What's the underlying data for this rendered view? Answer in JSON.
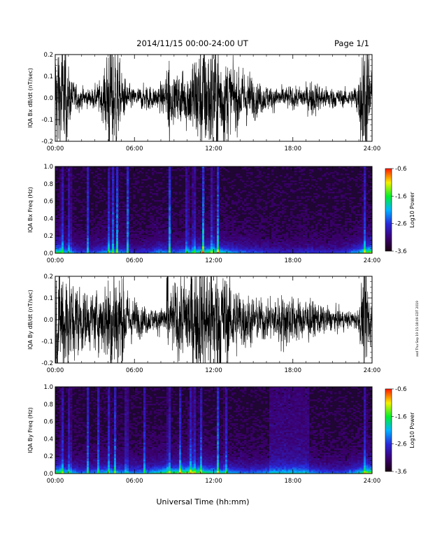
{
  "header": {
    "date_range": "2014/11/15   00:00-24:00 UT",
    "page": "Page 1/1"
  },
  "xlabel": "Universal Time (hh:mm)",
  "side_note": "asd Thu Sep 19 15:18:09 EDT 2019",
  "colors": {
    "spectrogram_scale": [
      "#1a0012",
      "#3b0070",
      "#2a28d8",
      "#00b4ff",
      "#00ee30",
      "#f6f000",
      "#ff1800"
    ]
  },
  "chart_data": [
    {
      "type": "line",
      "ylabel": "IQA Bx dB/dt (nT/sec)",
      "xlim": [
        0,
        24
      ],
      "ylim": [
        -0.2,
        0.2
      ],
      "xticks": [
        "00:00",
        "06:00",
        "12:00",
        "18:00",
        "24:00"
      ],
      "yticks": [
        "-0.2",
        "-0.1",
        "0.0",
        "0.1",
        "0.2"
      ],
      "envelope": {
        "hour": [
          0,
          0.3,
          0.7,
          1,
          1.5,
          2,
          2.5,
          3,
          3.5,
          4,
          4.2,
          4.5,
          4.8,
          5,
          5.5,
          6,
          6.5,
          7,
          7.5,
          8,
          8.5,
          9,
          9.5,
          10,
          10.5,
          11,
          11.5,
          12,
          12.5,
          13,
          13.5,
          14,
          14.5,
          15,
          15.5,
          16,
          16.5,
          17,
          17.5,
          18,
          18.5,
          19,
          19.5,
          20,
          20.5,
          21,
          21.5,
          22,
          22.5,
          23,
          23.2,
          23.5,
          23.8,
          24
        ],
        "amplitude": [
          0.24,
          0.24,
          0.22,
          0.13,
          0.06,
          0.05,
          0.04,
          0.05,
          0.08,
          0.2,
          0.25,
          0.25,
          0.18,
          0.12,
          0.06,
          0.04,
          0.05,
          0.06,
          0.05,
          0.06,
          0.12,
          0.09,
          0.13,
          0.13,
          0.2,
          0.25,
          0.25,
          0.25,
          0.22,
          0.2,
          0.14,
          0.13,
          0.12,
          0.09,
          0.07,
          0.06,
          0.05,
          0.05,
          0.05,
          0.05,
          0.05,
          0.06,
          0.08,
          0.06,
          0.05,
          0.05,
          0.04,
          0.04,
          0.04,
          0.09,
          0.25,
          0.25,
          0.25,
          0.06
        ]
      },
      "bursts_hour": [
        0.2,
        0.5,
        0.8,
        4.05,
        4.35,
        4.6,
        8.6,
        11.2,
        11.9,
        12.3,
        23.3,
        23.6
      ]
    },
    {
      "type": "heatmap",
      "ylabel": "IQA Bx Freq (Hz)",
      "xlim": [
        0,
        24
      ],
      "ylim": [
        0,
        1
      ],
      "xticks": [
        "00:00",
        "06:00",
        "12:00",
        "18:00",
        "24:00"
      ],
      "yticks": [
        "0.0",
        "0.2",
        "0.4",
        "0.6",
        "0.8",
        "1.0"
      ],
      "colorbar": {
        "label": "Log10 Power",
        "range": [
          -3.6,
          -0.6
        ],
        "ticks": [
          "-0.6",
          "-1.6",
          "-2.6",
          "-3.6"
        ]
      },
      "vertical_streaks_hour": [
        0.5,
        1.1,
        2.5,
        4.1,
        4.4,
        4.7,
        5.5,
        8.65,
        10,
        10.5,
        11.2,
        11.9,
        12.3,
        23.4
      ],
      "activity": [
        0.85,
        0.55,
        0.35,
        0.4,
        0.6,
        0.5,
        0.3,
        0.35,
        0.55,
        0.45,
        0.55,
        0.75,
        0.8,
        0.6,
        0.45,
        0.4,
        0.35,
        0.3,
        0.3,
        0.35,
        0.3,
        0.3,
        0.35,
        0.6,
        1.0
      ]
    },
    {
      "type": "line",
      "ylabel": "IQA By dB/dt (nT/sec)",
      "xlim": [
        0,
        24
      ],
      "ylim": [
        -0.2,
        0.2
      ],
      "xticks": [
        "00:00",
        "06:00",
        "12:00",
        "18:00",
        "24:00"
      ],
      "yticks": [
        "-0.2",
        "-0.1",
        "0.0",
        "0.1",
        "0.2"
      ],
      "envelope": {
        "hour": [
          0,
          0.3,
          0.7,
          1,
          1.5,
          2,
          2.5,
          3,
          3.5,
          4,
          4.3,
          4.6,
          5,
          5.5,
          6,
          6.5,
          7,
          7.5,
          8,
          8.5,
          9,
          9.5,
          10,
          10.5,
          11,
          11.5,
          12,
          12.5,
          13,
          13.5,
          14,
          14.5,
          15,
          15.5,
          16,
          16.5,
          17,
          17.5,
          18,
          18.5,
          19,
          19.5,
          20,
          20.5,
          21,
          21.5,
          22,
          22.5,
          23,
          23.3,
          23.6,
          24
        ],
        "amplitude": [
          0.25,
          0.25,
          0.25,
          0.22,
          0.17,
          0.15,
          0.12,
          0.13,
          0.14,
          0.2,
          0.25,
          0.25,
          0.22,
          0.12,
          0.09,
          0.07,
          0.06,
          0.05,
          0.06,
          0.09,
          0.16,
          0.18,
          0.22,
          0.25,
          0.25,
          0.25,
          0.25,
          0.24,
          0.2,
          0.17,
          0.14,
          0.12,
          0.1,
          0.09,
          0.09,
          0.1,
          0.12,
          0.12,
          0.11,
          0.09,
          0.1,
          0.08,
          0.07,
          0.06,
          0.05,
          0.05,
          0.04,
          0.04,
          0.05,
          0.2,
          0.25,
          0.06
        ]
      },
      "bursts_hour": [
        0.3,
        0.6,
        4.2,
        4.5,
        8.5,
        10.3,
        11.0,
        11.8,
        12.5,
        23.4
      ]
    },
    {
      "type": "heatmap",
      "ylabel": "IQA By Freq (Hz)",
      "xlim": [
        0,
        24
      ],
      "ylim": [
        0,
        1
      ],
      "xticks": [
        "00:00",
        "06:00",
        "12:00",
        "18:00",
        "24:00"
      ],
      "yticks": [
        "0.0",
        "0.2",
        "0.4",
        "0.6",
        "0.8",
        "1.0"
      ],
      "colorbar": {
        "label": "Log10 Power",
        "range": [
          -3.6,
          -0.6
        ],
        "ticks": [
          "-0.6",
          "-1.6",
          "-2.6",
          "-3.6"
        ]
      },
      "vertical_streaks_hour": [
        0.5,
        1.1,
        2.5,
        3.3,
        4.1,
        4.5,
        5.4,
        6.8,
        8.6,
        9.5,
        10.2,
        10.5,
        11.0,
        12.3,
        12.9,
        23.5
      ],
      "activity": [
        0.85,
        0.6,
        0.45,
        0.5,
        0.65,
        0.55,
        0.5,
        0.55,
        0.75,
        0.8,
        0.9,
        0.85,
        0.7,
        0.6,
        0.5,
        0.45,
        0.55,
        0.55,
        0.55,
        0.55,
        0.45,
        0.4,
        0.4,
        0.65,
        1.0
      ],
      "elevated_band_hour": [
        16.2,
        19.2
      ]
    }
  ]
}
